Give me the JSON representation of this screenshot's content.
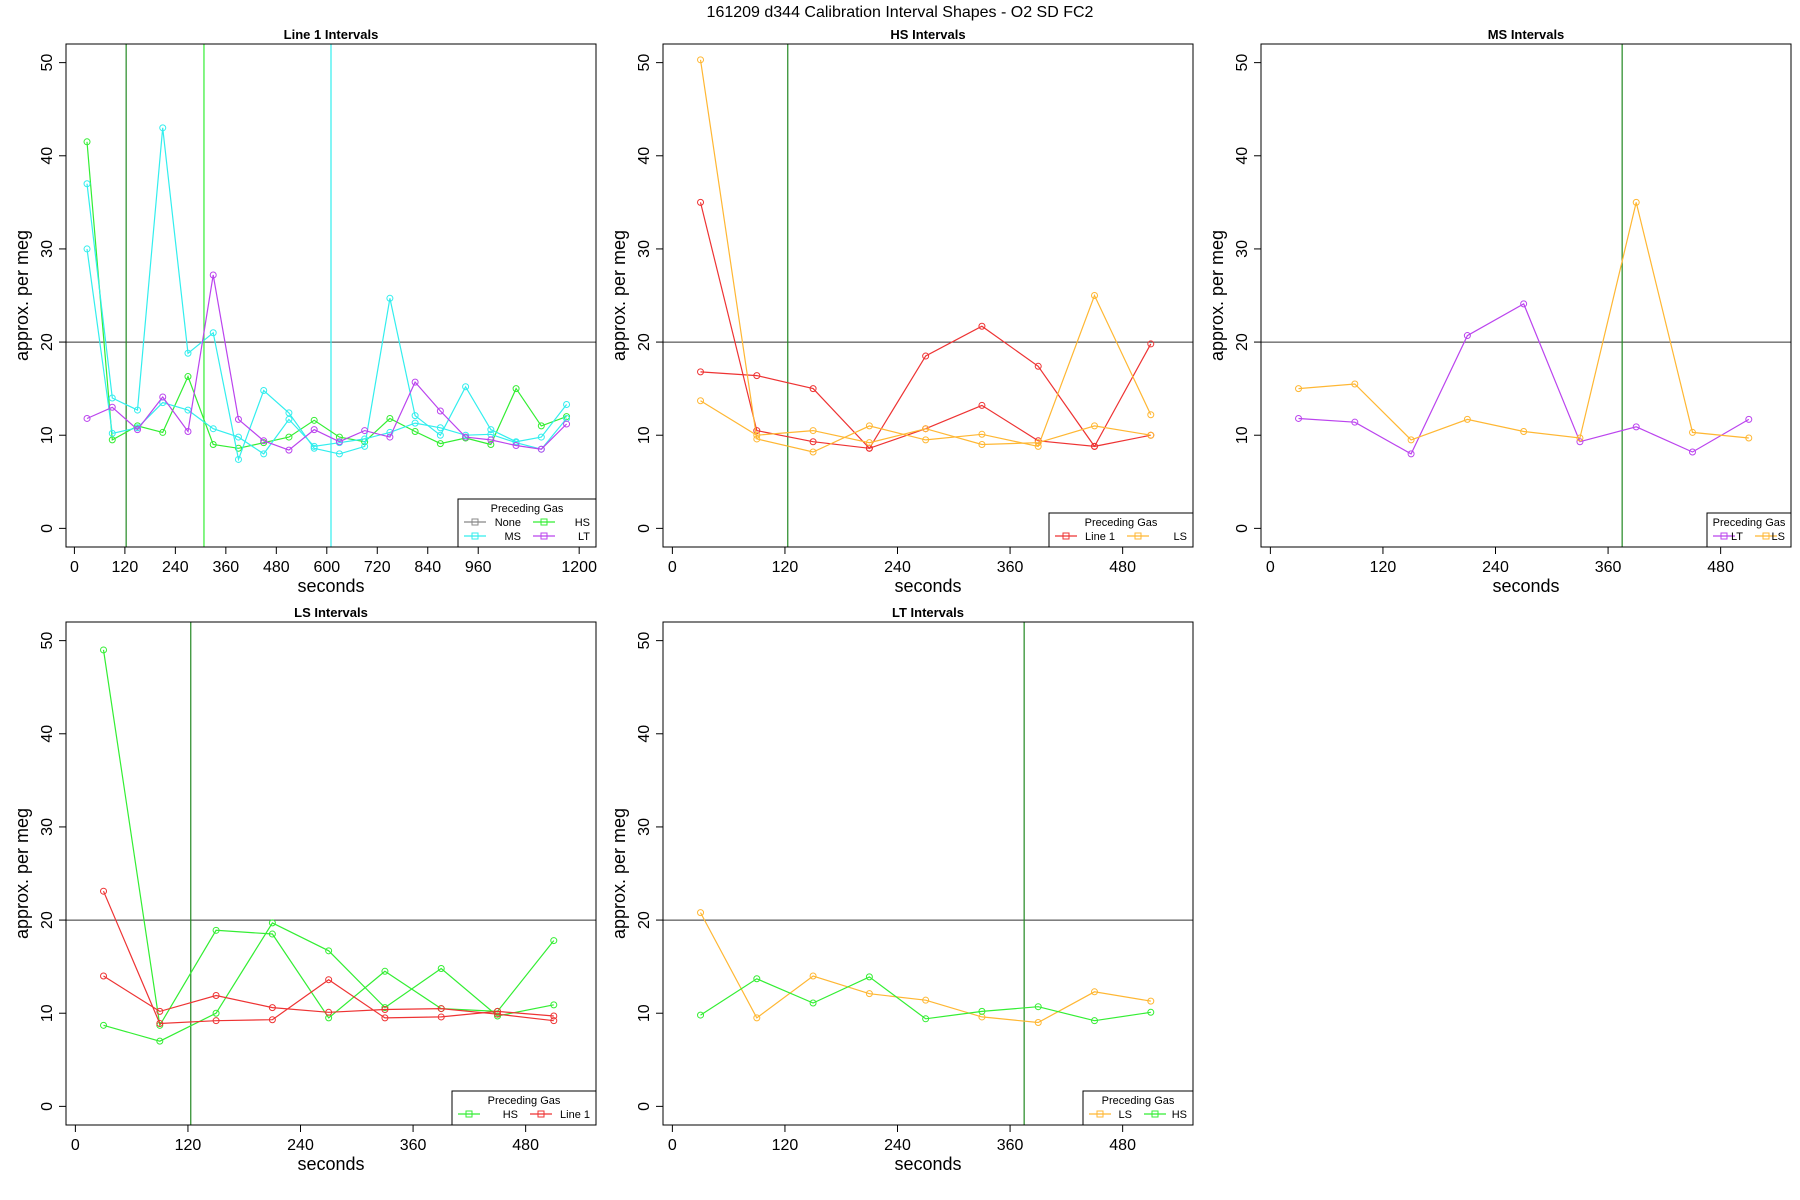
{
  "title": "161209   d344   Calibration Interval Shapes - O2 SD FC2",
  "colors": {
    "None": "#888888",
    "HS": "#33ee33",
    "MS": "#33eeee",
    "LT": "#bb44ee",
    "Line 1": "#ee3333",
    "LS": "#ffb733",
    "vline": "#228822",
    "hline": "#333333"
  },
  "chart_data": [
    {
      "type": "line",
      "title": "Line 1 Intervals",
      "xlabel": "seconds",
      "ylabel": "approx. per meg",
      "xlim": [
        -20,
        1240
      ],
      "ylim": [
        -2,
        52
      ],
      "xticks": [
        0,
        120,
        240,
        360,
        480,
        600,
        720,
        840,
        960,
        1200
      ],
      "yticks": [
        0,
        10,
        20,
        30,
        40,
        50
      ],
      "hline": 20,
      "vlines": [
        {
          "x": 123,
          "color": "#228822"
        },
        {
          "x": 308,
          "color": "#33ee33"
        },
        {
          "x": 610,
          "color": "#33eeee"
        }
      ],
      "legend": {
        "title": "Preceding Gas",
        "position": "bottom-right",
        "entries": [
          "None",
          "HS",
          "MS",
          "LT"
        ]
      },
      "series": [
        {
          "name": "HS",
          "x": [
            30,
            90,
            150,
            210,
            270,
            330,
            390,
            450,
            510,
            570,
            630,
            690,
            750,
            810,
            870,
            930,
            990,
            1050,
            1110,
            1170
          ],
          "y": [
            41.5,
            9.5,
            11,
            10.3,
            16.3,
            9,
            8.6,
            9.2,
            9.8,
            11.6,
            9.8,
            9.3,
            11.8,
            10.4,
            9.1,
            9.7,
            9,
            15,
            11,
            12
          ]
        },
        {
          "name": "MS",
          "x": [
            30,
            90,
            150,
            210,
            270,
            330,
            390,
            450,
            510,
            570,
            630,
            690,
            750,
            810,
            870,
            930,
            990,
            1050,
            1110,
            1170
          ],
          "y": [
            37,
            14,
            12.7,
            43,
            18.8,
            21,
            7.4,
            14.8,
            12.4,
            8.6,
            8,
            8.8,
            24.7,
            12.1,
            10,
            15.2,
            10.6,
            9.3,
            9.8,
            13.3
          ]
        },
        {
          "name": "MS",
          "x": [
            30,
            90,
            150,
            210,
            270,
            330,
            390,
            450,
            510,
            570,
            630,
            690,
            750,
            810,
            870,
            930,
            990,
            1050,
            1110,
            1170
          ],
          "y": [
            30,
            10.2,
            10.8,
            13.5,
            12.7,
            10.7,
            9.8,
            8,
            11.7,
            8.8,
            9.2,
            9.6,
            10.3,
            11.3,
            10.8,
            10,
            10.1,
            9.2,
            8.5,
            11.8
          ]
        },
        {
          "name": "LT",
          "x": [
            30,
            90,
            150,
            210,
            270,
            330,
            390,
            450,
            510,
            570,
            630,
            690,
            750,
            810,
            870,
            930,
            990,
            1050,
            1110,
            1170
          ],
          "y": [
            11.8,
            13,
            10.6,
            14.1,
            10.4,
            27.2,
            11.7,
            9.4,
            8.4,
            10.6,
            9.3,
            10.5,
            9.8,
            15.7,
            12.6,
            9.8,
            9.5,
            8.9,
            8.5,
            11.2
          ]
        }
      ]
    },
    {
      "type": "line",
      "title": "HS Intervals",
      "xlabel": "seconds",
      "ylabel": "approx. per meg",
      "xlim": [
        -10,
        555
      ],
      "ylim": [
        -2,
        52
      ],
      "xticks": [
        0,
        120,
        240,
        360,
        480
      ],
      "yticks": [
        0,
        10,
        20,
        30,
        40,
        50
      ],
      "hline": 20,
      "vlines": [
        {
          "x": 123,
          "color": "#228822"
        }
      ],
      "legend": {
        "title": "Preceding Gas",
        "position": "bottom-right",
        "entries": [
          "Line 1",
          "LS"
        ]
      },
      "series": [
        {
          "name": "Line 1",
          "x": [
            30,
            90,
            150,
            210,
            270,
            330,
            390,
            450,
            510
          ],
          "y": [
            35,
            10.5,
            9.3,
            8.6,
            10.7,
            13.2,
            9.4,
            8.8,
            19.8
          ]
        },
        {
          "name": "Line 1",
          "x": [
            30,
            90,
            150,
            210,
            270,
            330,
            390,
            450,
            510
          ],
          "y": [
            16.8,
            16.4,
            15,
            8.6,
            18.5,
            21.7,
            17.4,
            8.8,
            10
          ]
        },
        {
          "name": "LS",
          "x": [
            30,
            90,
            150,
            210,
            270,
            330,
            390,
            450,
            510
          ],
          "y": [
            50.3,
            9.6,
            8.2,
            11,
            9.5,
            10.1,
            8.8,
            25,
            12.2
          ]
        },
        {
          "name": "LS",
          "x": [
            30,
            90,
            150,
            210,
            270,
            330,
            390,
            450,
            510
          ],
          "y": [
            13.7,
            10,
            10.5,
            9.2,
            10.7,
            9,
            9.2,
            11,
            10
          ]
        }
      ]
    },
    {
      "type": "line",
      "title": "MS Intervals",
      "xlabel": "seconds",
      "ylabel": "approx. per meg",
      "xlim": [
        -10,
        555
      ],
      "ylim": [
        -2,
        52
      ],
      "xticks": [
        0,
        120,
        240,
        360,
        480
      ],
      "yticks": [
        0,
        10,
        20,
        30,
        40,
        50
      ],
      "hline": 20,
      "vlines": [
        {
          "x": 375,
          "color": "#228822"
        }
      ],
      "legend": {
        "title": "Preceding Gas",
        "position": "bottom-right",
        "entries": [
          "LT",
          "LS"
        ]
      },
      "series": [
        {
          "name": "LT",
          "x": [
            30,
            90,
            150,
            210,
            270,
            330,
            390,
            450,
            510
          ],
          "y": [
            11.8,
            11.4,
            8,
            20.7,
            24.1,
            9.3,
            10.9,
            8.2,
            11.7
          ]
        },
        {
          "name": "LS",
          "x": [
            30,
            90,
            150,
            210,
            270,
            330,
            390,
            450,
            510
          ],
          "y": [
            15,
            15.5,
            9.5,
            11.7,
            10.4,
            9.7,
            35,
            10.3,
            9.7
          ]
        }
      ]
    },
    {
      "type": "line",
      "title": "LS Intervals",
      "xlabel": "seconds",
      "ylabel": "approx. per meg",
      "xlim": [
        -10,
        555
      ],
      "ylim": [
        -2,
        52
      ],
      "xticks": [
        0,
        120,
        240,
        360,
        480
      ],
      "yticks": [
        0,
        10,
        20,
        30,
        40,
        50
      ],
      "hline": 20,
      "vlines": [
        {
          "x": 123,
          "color": "#228822"
        }
      ],
      "legend": {
        "title": "Preceding Gas",
        "position": "bottom-right",
        "entries": [
          "HS",
          "Line 1"
        ]
      },
      "series": [
        {
          "name": "HS",
          "x": [
            30,
            90,
            150,
            210,
            270,
            330,
            390,
            450,
            510
          ],
          "y": [
            49,
            8.7,
            18.9,
            18.5,
            9.5,
            14.5,
            10.5,
            10.2,
            17.8
          ]
        },
        {
          "name": "HS",
          "x": [
            30,
            90,
            150,
            210,
            270,
            330,
            390,
            450,
            510
          ],
          "y": [
            8.7,
            7,
            10,
            19.7,
            16.7,
            10.6,
            14.8,
            9.7,
            10.9
          ]
        },
        {
          "name": "Line 1",
          "x": [
            30,
            90,
            150,
            210,
            270,
            330,
            390,
            450,
            510
          ],
          "y": [
            23.1,
            8.9,
            9.2,
            9.3,
            13.6,
            9.5,
            9.6,
            10.2,
            9.7
          ]
        },
        {
          "name": "Line 1",
          "x": [
            30,
            90,
            150,
            210,
            270,
            330,
            390,
            450,
            510
          ],
          "y": [
            14,
            10.2,
            11.9,
            10.6,
            10.1,
            10.4,
            10.5,
            9.9,
            9.2
          ]
        }
      ]
    },
    {
      "type": "line",
      "title": "LT Intervals",
      "xlabel": "seconds",
      "ylabel": "approx. per meg",
      "xlim": [
        -10,
        555
      ],
      "ylim": [
        -2,
        52
      ],
      "xticks": [
        0,
        120,
        240,
        360,
        480
      ],
      "yticks": [
        0,
        10,
        20,
        30,
        40,
        50
      ],
      "hline": 20,
      "vlines": [
        {
          "x": 375,
          "color": "#228822"
        }
      ],
      "legend": {
        "title": "Preceding Gas",
        "position": "bottom-right",
        "entries": [
          "LS",
          "HS"
        ]
      },
      "series": [
        {
          "name": "LS",
          "x": [
            30,
            90,
            150,
            210,
            270,
            330,
            390,
            450,
            510
          ],
          "y": [
            20.8,
            9.5,
            14,
            12.1,
            11.4,
            9.6,
            9,
            12.3,
            11.3
          ]
        },
        {
          "name": "HS",
          "x": [
            30,
            90,
            150,
            210,
            270,
            330,
            390,
            450,
            510
          ],
          "y": [
            9.8,
            13.7,
            11.1,
            13.9,
            9.4,
            10.2,
            10.7,
            9.2,
            10.1
          ]
        }
      ]
    }
  ]
}
